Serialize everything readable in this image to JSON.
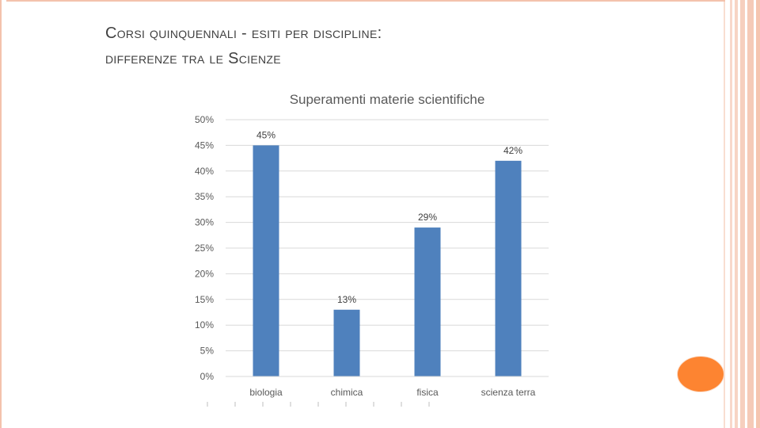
{
  "slide": {
    "title_line1": "Corsi quinquennali - esiti per  discipline:",
    "title_line2": "differenze tra le Scienze"
  },
  "colors": {
    "bar": "#4f81bd",
    "frame": "#f4c2ac",
    "accent_dot": "#fd8431",
    "text": "#404040",
    "axis_text": "#595959",
    "grid": "#d9d9d9"
  },
  "chart_data": {
    "type": "bar",
    "title": "Superamenti materie scientifiche",
    "categories": [
      "biologia",
      "chimica",
      "fisica",
      "scienza terra"
    ],
    "values": [
      45,
      13,
      29,
      42
    ],
    "data_labels": [
      "45%",
      "13%",
      "29%",
      "42%"
    ],
    "ylim": [
      0,
      50
    ],
    "yticks": [
      "0%",
      "5%",
      "10%",
      "15%",
      "20%",
      "25%",
      "30%",
      "35%",
      "40%",
      "45%",
      "50%"
    ],
    "grid": true,
    "legend": "none"
  }
}
